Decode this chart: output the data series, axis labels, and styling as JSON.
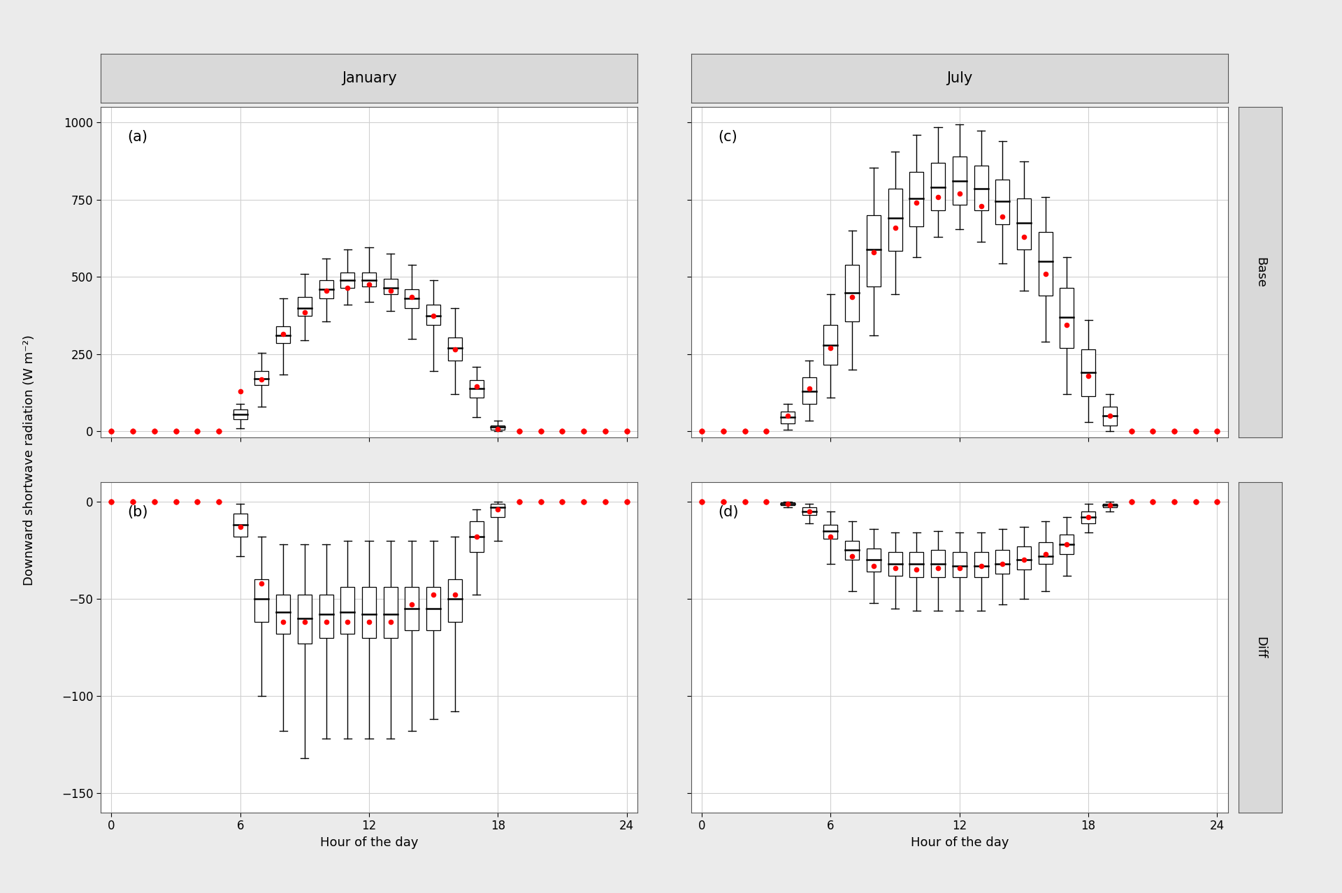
{
  "panel_labels": [
    "(a)",
    "(b)",
    "(c)",
    "(d)"
  ],
  "col_titles": [
    "January",
    "July"
  ],
  "row_titles": [
    "Base",
    "Diff"
  ],
  "xlabel": "Hour of the day",
  "ylabel": "Downward shortwave radiation (W m⁻²)",
  "hours": [
    0,
    1,
    2,
    3,
    4,
    5,
    6,
    7,
    8,
    9,
    10,
    11,
    12,
    13,
    14,
    15,
    16,
    17,
    18,
    19,
    20,
    21,
    22,
    23,
    24
  ],
  "background_color": "#ebebeb",
  "panel_bg": "#ffffff",
  "grid_color": "#d0d0d0",
  "header_color": "#d9d9d9",
  "jan_base": {
    "median": [
      0,
      0,
      0,
      0,
      0,
      0,
      55,
      170,
      310,
      400,
      460,
      490,
      490,
      465,
      430,
      375,
      270,
      140,
      15,
      0,
      0,
      0,
      0,
      0,
      0
    ],
    "q1": [
      0,
      0,
      0,
      0,
      0,
      0,
      40,
      150,
      285,
      375,
      430,
      465,
      470,
      445,
      400,
      345,
      230,
      110,
      5,
      0,
      0,
      0,
      0,
      0,
      0
    ],
    "q3": [
      0,
      0,
      0,
      0,
      0,
      0,
      70,
      195,
      340,
      435,
      490,
      515,
      515,
      495,
      460,
      410,
      305,
      165,
      20,
      0,
      0,
      0,
      0,
      0,
      0
    ],
    "whislo": [
      0,
      0,
      0,
      0,
      0,
      0,
      10,
      80,
      185,
      295,
      355,
      410,
      420,
      390,
      300,
      195,
      120,
      45,
      0,
      0,
      0,
      0,
      0,
      0,
      0
    ],
    "whishi": [
      0,
      0,
      0,
      0,
      0,
      0,
      90,
      255,
      430,
      510,
      560,
      590,
      595,
      575,
      540,
      490,
      400,
      210,
      35,
      0,
      0,
      0,
      0,
      0,
      0
    ],
    "mean": [
      0,
      0,
      0,
      0,
      0,
      0,
      130,
      168,
      315,
      385,
      455,
      465,
      475,
      455,
      435,
      375,
      265,
      145,
      8,
      0,
      0,
      0,
      0,
      0,
      0
    ]
  },
  "jan_diff": {
    "median": [
      0,
      0,
      0,
      0,
      0,
      0,
      -12,
      -50,
      -57,
      -60,
      -58,
      -57,
      -58,
      -58,
      -55,
      -55,
      -50,
      -18,
      -3,
      0,
      0,
      0,
      0,
      0,
      0
    ],
    "q1": [
      0,
      0,
      0,
      0,
      0,
      0,
      -18,
      -62,
      -68,
      -73,
      -70,
      -68,
      -70,
      -70,
      -66,
      -66,
      -62,
      -26,
      -8,
      0,
      0,
      0,
      0,
      0,
      0
    ],
    "q3": [
      0,
      0,
      0,
      0,
      0,
      0,
      -6,
      -40,
      -48,
      -48,
      -48,
      -44,
      -44,
      -44,
      -44,
      -44,
      -40,
      -10,
      -1,
      0,
      0,
      0,
      0,
      0,
      0
    ],
    "whislo": [
      0,
      0,
      0,
      0,
      0,
      0,
      -28,
      -100,
      -118,
      -132,
      -122,
      -122,
      -122,
      -122,
      -118,
      -112,
      -108,
      -48,
      -20,
      0,
      0,
      0,
      0,
      0,
      0
    ],
    "whishi": [
      0,
      0,
      0,
      0,
      0,
      0,
      -1,
      -18,
      -22,
      -22,
      -22,
      -20,
      -20,
      -20,
      -20,
      -20,
      -18,
      -4,
      -0.2,
      0,
      0,
      0,
      0,
      0,
      0
    ],
    "mean": [
      0,
      0,
      0,
      0,
      0,
      0,
      -13,
      -42,
      -62,
      -62,
      -62,
      -62,
      -62,
      -62,
      -53,
      -48,
      -48,
      -18,
      -4,
      0,
      0,
      0,
      0,
      0,
      0
    ]
  },
  "jul_base": {
    "median": [
      0,
      0,
      0,
      0,
      45,
      130,
      280,
      450,
      590,
      690,
      755,
      790,
      810,
      785,
      745,
      675,
      550,
      370,
      190,
      50,
      0,
      0,
      0,
      0,
      0
    ],
    "q1": [
      0,
      0,
      0,
      0,
      25,
      90,
      215,
      355,
      470,
      585,
      665,
      715,
      735,
      715,
      670,
      590,
      440,
      270,
      115,
      20,
      0,
      0,
      0,
      0,
      0
    ],
    "q3": [
      0,
      0,
      0,
      0,
      65,
      175,
      345,
      540,
      700,
      785,
      840,
      870,
      890,
      860,
      815,
      755,
      645,
      465,
      265,
      80,
      0,
      0,
      0,
      0,
      0
    ],
    "whislo": [
      0,
      0,
      0,
      0,
      5,
      35,
      110,
      200,
      310,
      445,
      565,
      630,
      655,
      615,
      545,
      455,
      290,
      120,
      30,
      0,
      0,
      0,
      0,
      0,
      0
    ],
    "whishi": [
      0,
      0,
      0,
      0,
      90,
      230,
      445,
      650,
      855,
      905,
      960,
      985,
      995,
      975,
      940,
      875,
      760,
      565,
      360,
      120,
      0,
      0,
      0,
      0,
      0
    ],
    "mean": [
      0,
      0,
      0,
      0,
      50,
      140,
      270,
      435,
      580,
      660,
      740,
      760,
      770,
      730,
      695,
      630,
      510,
      345,
      180,
      50,
      0,
      0,
      0,
      0,
      0
    ]
  },
  "jul_diff": {
    "median": [
      0,
      0,
      0,
      0,
      -1,
      -5,
      -15,
      -25,
      -30,
      -32,
      -32,
      -32,
      -33,
      -33,
      -32,
      -30,
      -28,
      -22,
      -8,
      -2,
      0,
      0,
      0,
      0,
      0
    ],
    "q1": [
      0,
      0,
      0,
      0,
      -2,
      -7,
      -19,
      -30,
      -36,
      -38,
      -39,
      -39,
      -39,
      -39,
      -37,
      -35,
      -32,
      -27,
      -11,
      -3,
      0,
      0,
      0,
      0,
      0
    ],
    "q3": [
      0,
      0,
      0,
      0,
      -0.5,
      -3,
      -12,
      -20,
      -24,
      -26,
      -26,
      -25,
      -26,
      -26,
      -25,
      -23,
      -21,
      -17,
      -5,
      -1,
      0,
      0,
      0,
      0,
      0
    ],
    "whislo": [
      0,
      0,
      0,
      0,
      -3,
      -11,
      -32,
      -46,
      -52,
      -55,
      -56,
      -56,
      -56,
      -56,
      -53,
      -50,
      -46,
      -38,
      -16,
      -5,
      0,
      0,
      0,
      0,
      0
    ],
    "whishi": [
      0,
      0,
      0,
      0,
      -0.1,
      -1,
      -5,
      -10,
      -14,
      -16,
      -16,
      -15,
      -16,
      -16,
      -14,
      -13,
      -10,
      -8,
      -1,
      -0.2,
      0,
      0,
      0,
      0,
      0
    ],
    "mean": [
      0,
      0,
      0,
      0,
      -1,
      -5,
      -18,
      -28,
      -33,
      -34,
      -35,
      -34,
      -34,
      -33,
      -32,
      -30,
      -27,
      -22,
      -8,
      -2,
      0,
      0,
      0,
      0,
      0
    ]
  },
  "ylim_base": [
    -20,
    1050
  ],
  "ylim_diff": [
    -160,
    10
  ],
  "yticks_base": [
    0,
    250,
    500,
    750,
    1000
  ],
  "yticks_diff": [
    0,
    -50,
    -100,
    -150
  ],
  "xticks": [
    0,
    6,
    12,
    18,
    24
  ],
  "box_width": 0.65,
  "box_color": "white",
  "box_edgecolor": "black",
  "median_color": "black",
  "mean_color": "red",
  "whisker_color": "black",
  "cap_color": "black",
  "title_fontsize": 15,
  "label_fontsize": 13,
  "tick_fontsize": 12,
  "panel_label_fontsize": 15,
  "row_title_fontsize": 13
}
